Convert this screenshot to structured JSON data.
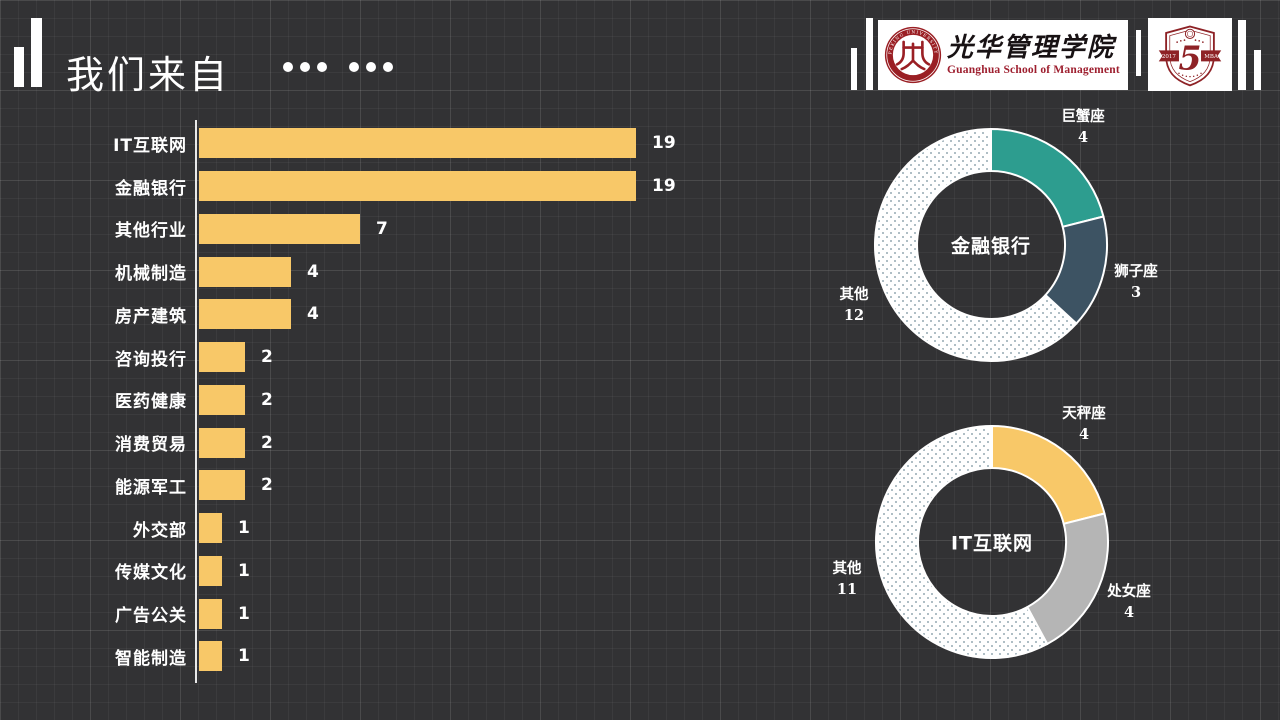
{
  "title": {
    "text": "我们来自",
    "dot_groups": [
      3,
      3
    ]
  },
  "header": {
    "university_seal": {
      "ring_text": "PEKING UNIVERSITY",
      "year": "1898"
    },
    "school": {
      "calligraphy": "光华管理学院",
      "english": "Guanghua School of Management"
    },
    "anniversary_badge": {
      "number": "5",
      "ribbon_left": "2017",
      "ribbon_right": "MBA"
    }
  },
  "colors": {
    "background": "#323234",
    "bar": "#f8c868",
    "donut_teal": "#2d9d8f",
    "donut_slate": "#3d5363",
    "donut_yellow": "#f8c868",
    "donut_gray": "#b5b5b5",
    "pattern_dot": "#96a9b2",
    "pattern_bg": "#ffffff",
    "seal_red": "#9a1f24",
    "badge_red": "#8e2226",
    "axis": "#e9e9e9",
    "text": "#ffffff"
  },
  "chart_data": [
    {
      "type": "bar",
      "orientation": "horizontal",
      "categories": [
        "IT互联网",
        "金融银行",
        "其他行业",
        "机械制造",
        "房产建筑",
        "咨询投行",
        "医药健康",
        "消费贸易",
        "能源军工",
        "外交部",
        "传媒文化",
        "广告公关",
        "智能制造"
      ],
      "values": [
        19,
        19,
        7,
        4,
        4,
        2,
        2,
        2,
        2,
        1,
        1,
        1,
        1
      ],
      "bar_color": "#f8c868",
      "value_labels_shown": true,
      "xlim": [
        0,
        19
      ]
    },
    {
      "type": "donut",
      "title": "金融银行",
      "total": 19,
      "slices": [
        {
          "label": "巨蟹座",
          "value": 4,
          "fill": "#2d9d8f"
        },
        {
          "label": "狮子座",
          "value": 3,
          "fill": "#3d5363"
        },
        {
          "label": "其他",
          "value": 12,
          "fill": "dots"
        }
      ]
    },
    {
      "type": "donut",
      "title": "IT互联网",
      "total": 19,
      "slices": [
        {
          "label": "天秤座",
          "value": 4,
          "fill": "#f8c868"
        },
        {
          "label": "处女座",
          "value": 4,
          "fill": "#b5b5b5"
        },
        {
          "label": "其他",
          "value": 11,
          "fill": "dots"
        }
      ]
    }
  ]
}
